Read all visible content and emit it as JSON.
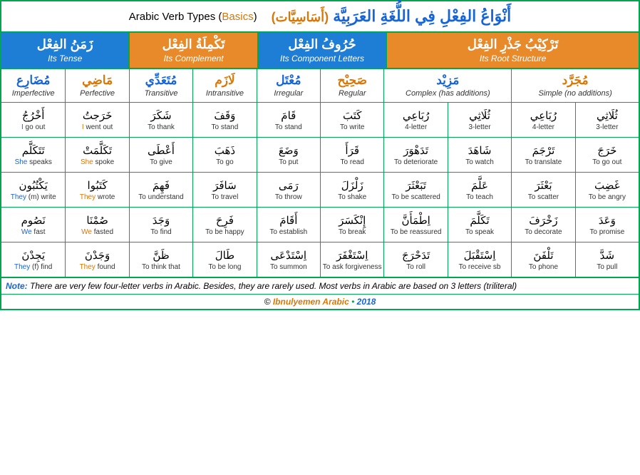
{
  "title": {
    "english_prefix": "Arabic Verb Types (",
    "english_basics": "Basics",
    "english_suffix": ")",
    "arabic_sub": "(أَسَاسِيَّات)",
    "arabic_main": "أَنْوَاعُ الفِعْلِ فِي اللُّغَةِ العَرَبِيَّة"
  },
  "categories": [
    {
      "ar": "زَمَنُ الفِعْل",
      "en": "Its Tense",
      "bg": "blue-bg",
      "span": 2
    },
    {
      "ar": "تَكْمِلَةُ الفِعْل",
      "en": "Its Complement",
      "bg": "orange-bg",
      "span": 2
    },
    {
      "ar": "حُرُوفُ الفِعْل",
      "en": "Its Component Letters",
      "bg": "blue-bg",
      "span": 2
    },
    {
      "ar": "تَرْكِيْبُ جَذْرِ الفِعْل",
      "en": "Its Root Structure",
      "bg": "orange-bg",
      "span": 4
    }
  ],
  "subcats": [
    {
      "ar": "مُضَارِع",
      "en": "Imperfective",
      "color": "ar-blue",
      "span": 1
    },
    {
      "ar": "مَاضِي",
      "en": "Perfective",
      "color": "ar-orange",
      "span": 1
    },
    {
      "ar": "مُتَعَدِّي",
      "en": "Transitive",
      "color": "ar-blue",
      "span": 1
    },
    {
      "ar": "لَازَم",
      "en": "Intransitive",
      "color": "ar-orange",
      "span": 1
    },
    {
      "ar": "مُعْتَل",
      "en": "Irregular",
      "color": "ar-blue",
      "span": 1
    },
    {
      "ar": "صَحِيْح",
      "en": "Regular",
      "color": "ar-orange",
      "span": 1
    },
    {
      "ar": "مَزِيْد",
      "en": "Complex (has additions)",
      "color": "ar-blue",
      "span": 2
    },
    {
      "ar": "مُجَرَّد",
      "en": "Simple (no additions)",
      "color": "ar-orange",
      "span": 2
    }
  ],
  "rows": [
    [
      {
        "ar": "أَخْرُجُ",
        "en_pre": "",
        "en_hl": "I",
        "en_post": " go out",
        "hlc": "hl-blue"
      },
      {
        "ar": "خَرَجتُ",
        "en_pre": "",
        "en_hl": "I",
        "en_post": " went out",
        "hlc": "hl-orange"
      },
      {
        "ar": "شَكَرَ",
        "en_pre": "To thank",
        "en_hl": "",
        "en_post": ""
      },
      {
        "ar": "وَقَفَ",
        "en_pre": "To stand",
        "en_hl": "",
        "en_post": ""
      },
      {
        "ar": "قَامَ",
        "en_pre": "To stand",
        "en_hl": "",
        "en_post": ""
      },
      {
        "ar": "كَتَبَ",
        "en_pre": "To write",
        "en_hl": "",
        "en_post": ""
      },
      {
        "ar": "رُبَاعِي",
        "en_pre": "4-letter",
        "en_hl": "",
        "en_post": "",
        "arcolor": "ar-blue"
      },
      {
        "ar": "ثُلَاثِي",
        "en_pre": "3-letter",
        "en_hl": "",
        "en_post": "",
        "arcolor": "ar-orange"
      },
      {
        "ar": "رُبَاعِي",
        "en_pre": "4-letter",
        "en_hl": "",
        "en_post": "",
        "arcolor": "ar-blue"
      },
      {
        "ar": "ثُلَاثِي",
        "en_pre": "3-letter",
        "en_hl": "",
        "en_post": "",
        "arcolor": "ar-orange"
      }
    ],
    [
      {
        "ar": "تَتَكَلَّم",
        "en_pre": "",
        "en_hl": "She",
        "en_post": " speaks",
        "hlc": "hl-blue"
      },
      {
        "ar": "تَكَلَّمَتْ",
        "en_pre": "",
        "en_hl": "She",
        "en_post": " spoke",
        "hlc": "hl-orange"
      },
      {
        "ar": "أَعْطَى",
        "en_pre": "To give",
        "en_hl": "",
        "en_post": ""
      },
      {
        "ar": "ذَهَبَ",
        "en_pre": "To go",
        "en_hl": "",
        "en_post": ""
      },
      {
        "ar": "وَضَعَ",
        "en_pre": "To put",
        "en_hl": "",
        "en_post": ""
      },
      {
        "ar": "قَرَأَ",
        "en_pre": "To read",
        "en_hl": "",
        "en_post": ""
      },
      {
        "ar": "تَدَهْوَرَ",
        "en_pre": "To deteriorate",
        "en_hl": "",
        "en_post": ""
      },
      {
        "ar": "شَاهَدَ",
        "en_pre": "To watch",
        "en_hl": "",
        "en_post": ""
      },
      {
        "ar": "تَرْجَمَ",
        "en_pre": "To translate",
        "en_hl": "",
        "en_post": ""
      },
      {
        "ar": "خَرَجَ",
        "en_pre": "To go out",
        "en_hl": "",
        "en_post": ""
      }
    ],
    [
      {
        "ar": "يَكْتُبُون",
        "en_pre": "",
        "en_hl": "They",
        "en_post": " (m) write",
        "hlc": "hl-blue"
      },
      {
        "ar": "كَتَبُوا",
        "en_pre": "",
        "en_hl": "They",
        "en_post": " wrote",
        "hlc": "hl-orange"
      },
      {
        "ar": "فَهِمَ",
        "en_pre": "To understand",
        "en_hl": "",
        "en_post": ""
      },
      {
        "ar": "سَافَرَ",
        "en_pre": "To travel",
        "en_hl": "",
        "en_post": ""
      },
      {
        "ar": "رَمَى",
        "en_pre": "To throw",
        "en_hl": "",
        "en_post": ""
      },
      {
        "ar": "زَلْزَلَ",
        "en_pre": "To shake",
        "en_hl": "",
        "en_post": ""
      },
      {
        "ar": "تَبَعْثَرَ",
        "en_pre": "To be scattered",
        "en_hl": "",
        "en_post": ""
      },
      {
        "ar": "عَلَّمَ",
        "en_pre": "To teach",
        "en_hl": "",
        "en_post": ""
      },
      {
        "ar": "بَعْثَرَ",
        "en_pre": "To scatter",
        "en_hl": "",
        "en_post": ""
      },
      {
        "ar": "غَضِبَ",
        "en_pre": "To be angry",
        "en_hl": "",
        "en_post": ""
      }
    ],
    [
      {
        "ar": "نَصُوم",
        "en_pre": "",
        "en_hl": "We",
        "en_post": " fast",
        "hlc": "hl-blue"
      },
      {
        "ar": "صُمْنَا",
        "en_pre": "",
        "en_hl": "We",
        "en_post": " fasted",
        "hlc": "hl-orange"
      },
      {
        "ar": "وَجَدَ",
        "en_pre": "To find",
        "en_hl": "",
        "en_post": ""
      },
      {
        "ar": "فَرِحَ",
        "en_pre": "To be happy",
        "en_hl": "",
        "en_post": ""
      },
      {
        "ar": "أَقَامَ",
        "en_pre": "To establish",
        "en_hl": "",
        "en_post": ""
      },
      {
        "ar": "إِنْكَسَرَ",
        "en_pre": "To break",
        "en_hl": "",
        "en_post": ""
      },
      {
        "ar": "اِطْمَأَنَّ",
        "en_pre": "To be reassured",
        "en_hl": "",
        "en_post": ""
      },
      {
        "ar": "تَكَلَّمَ",
        "en_pre": "To speak",
        "en_hl": "",
        "en_post": ""
      },
      {
        "ar": "زَخْرَفَ",
        "en_pre": "To decorate",
        "en_hl": "",
        "en_post": ""
      },
      {
        "ar": "وَعَدَ",
        "en_pre": "To promise",
        "en_hl": "",
        "en_post": ""
      }
    ],
    [
      {
        "ar": "يَجِدْنَ",
        "en_pre": "",
        "en_hl": "They",
        "en_post": " (f) find",
        "hlc": "hl-blue"
      },
      {
        "ar": "وَجَدْنَ",
        "en_pre": "",
        "en_hl": "They",
        "en_post": " found",
        "hlc": "hl-orange"
      },
      {
        "ar": "ظَنَّ",
        "en_pre": "To think that",
        "en_hl": "",
        "en_post": ""
      },
      {
        "ar": "طَالَ",
        "en_pre": "To be long",
        "en_hl": "",
        "en_post": ""
      },
      {
        "ar": "اِسْتَدْعَى",
        "en_pre": "To summon",
        "en_hl": "",
        "en_post": ""
      },
      {
        "ar": "اِسْتَغْفَرَ",
        "en_pre": "To ask forgiveness",
        "en_hl": "",
        "en_post": ""
      },
      {
        "ar": "تَدَحْرَجَ",
        "en_pre": "To roll",
        "en_hl": "",
        "en_post": ""
      },
      {
        "ar": "اِسْتَقْبَلَ",
        "en_pre": "To receive sb",
        "en_hl": "",
        "en_post": ""
      },
      {
        "ar": "تَلْفَنَ",
        "en_pre": "To phone",
        "en_hl": "",
        "en_post": ""
      },
      {
        "ar": "شَدَّ",
        "en_pre": "To pull",
        "en_hl": "",
        "en_post": ""
      }
    ]
  ],
  "note": {
    "label": "Note:",
    "text": " There are very few four-letter verbs in Arabic. Besides, they are rarely used. Most verbs in Arabic are based on 3 letters (triliteral)"
  },
  "footer": {
    "copyright": "©",
    "brand": "Ibnulyemen Arabic",
    "bullet": "•",
    "year": "2018"
  },
  "colors": {
    "border": "#00a650",
    "blue": "#1e7dd4",
    "orange": "#e88a2a",
    "text_blue": "#1565d8",
    "text_orange": "#d97706"
  }
}
